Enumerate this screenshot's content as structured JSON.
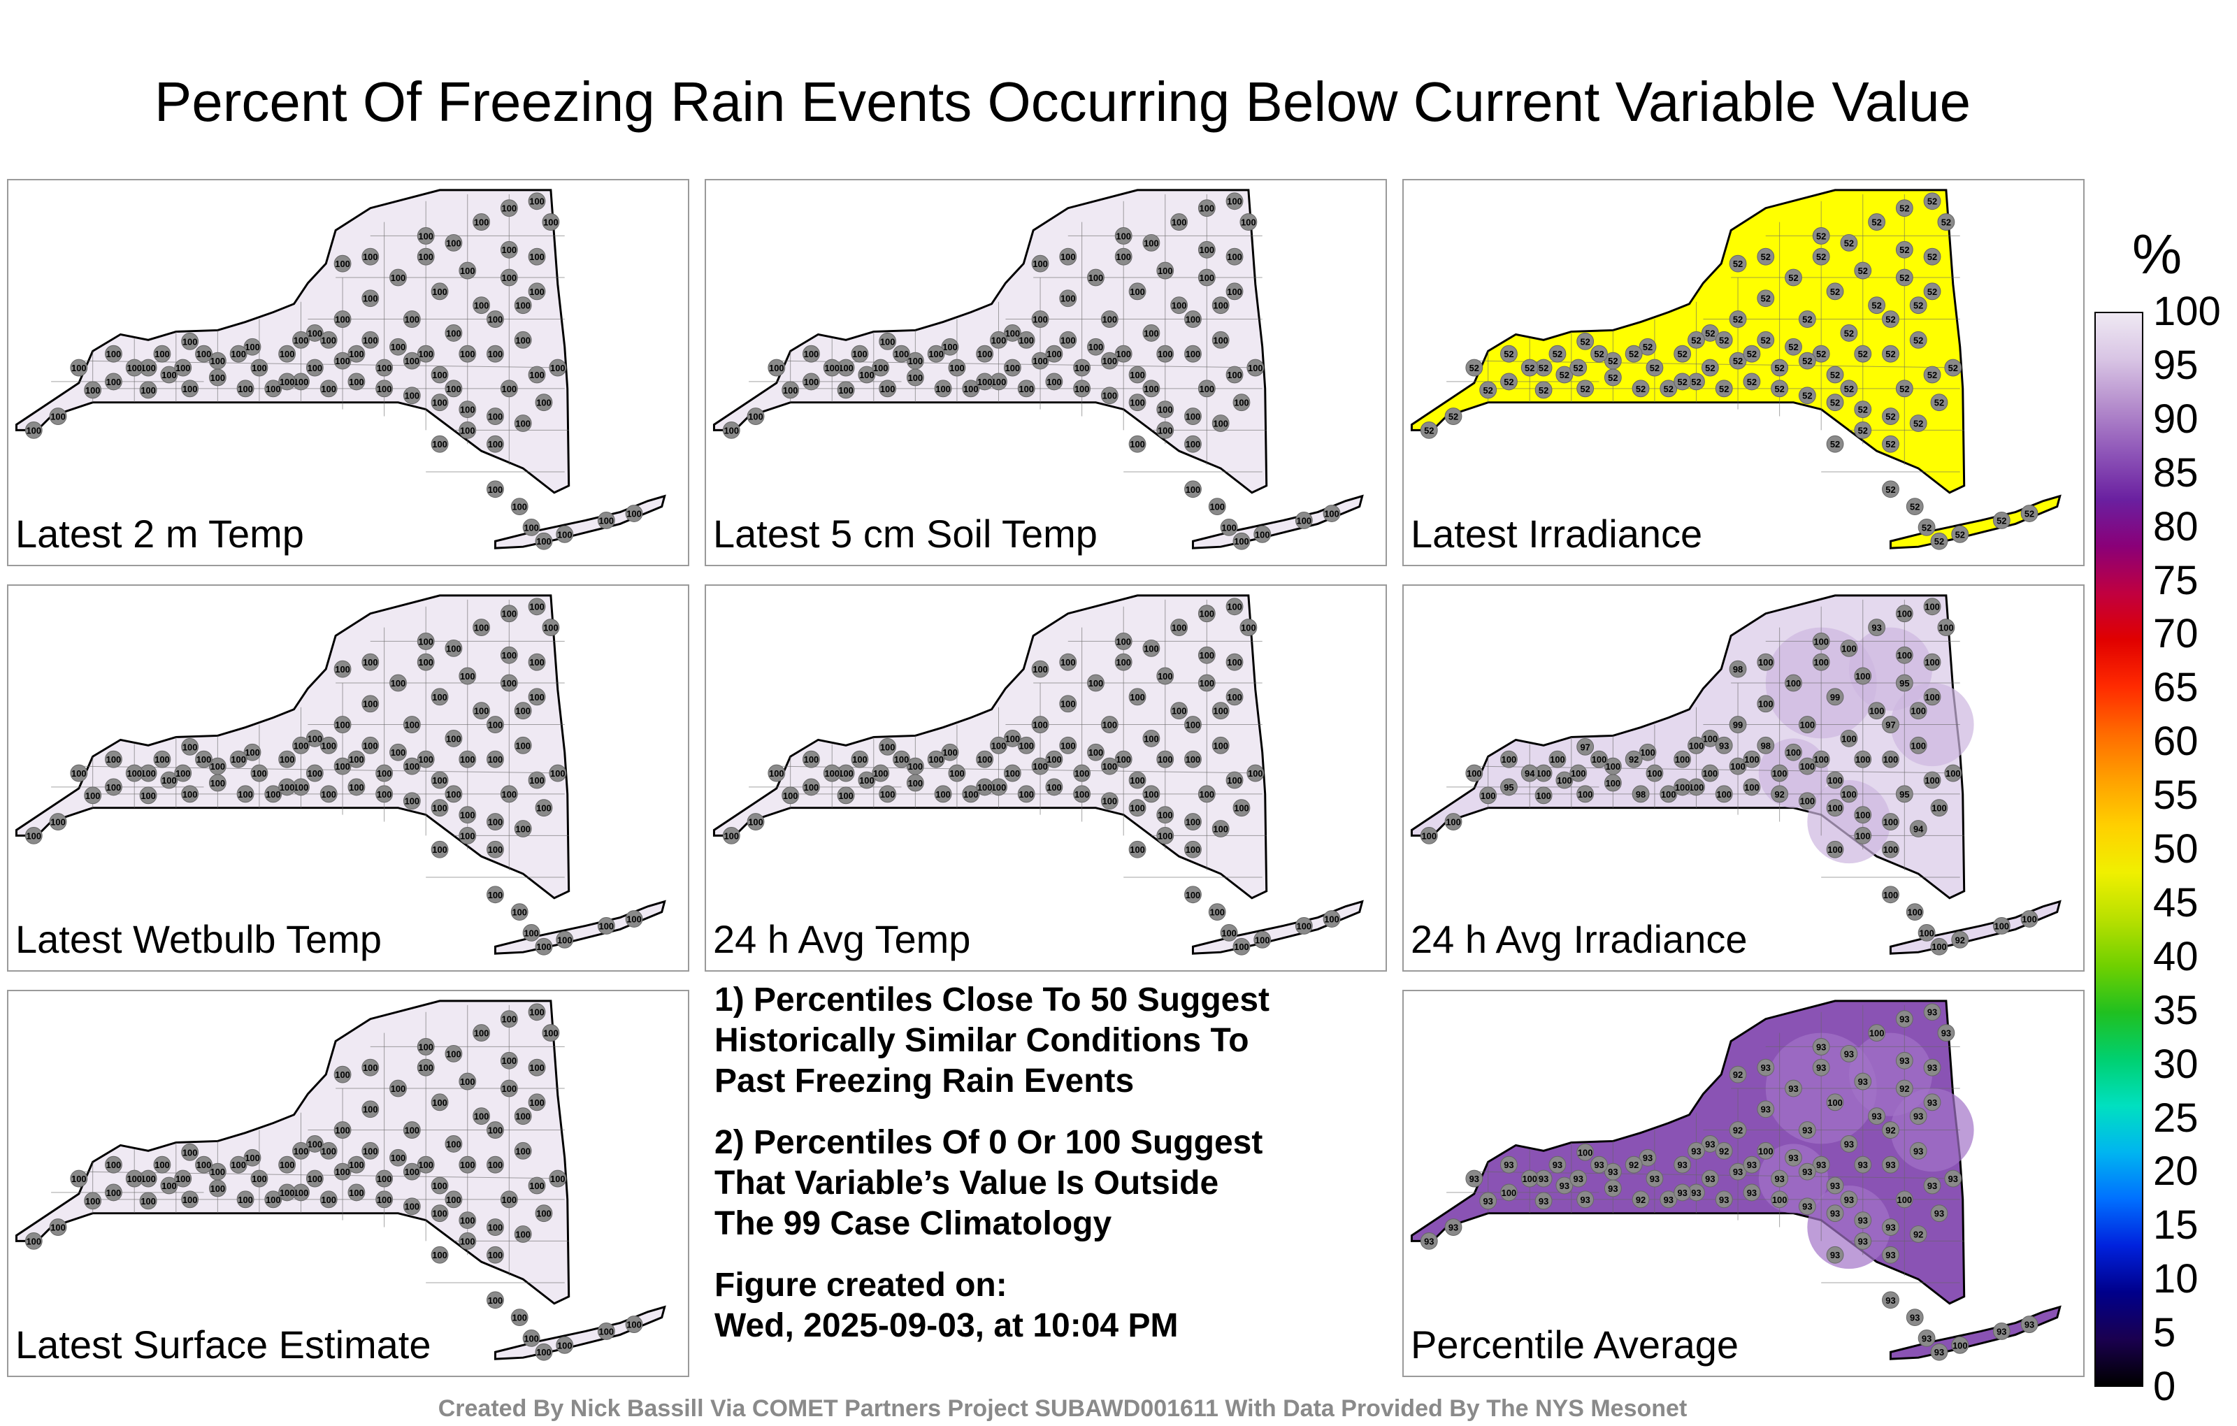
{
  "title": "Percent Of Freezing Rain Events Occurring Below Current Variable Value",
  "panels": [
    {
      "label": "Latest 2 m Temp",
      "fill": "#efe9f3",
      "value_main": 100
    },
    {
      "label": "Latest 5 cm Soil Temp",
      "fill": "#efe9f3",
      "value_main": 100
    },
    {
      "label": "Latest Irradiance",
      "fill": "#ffff00",
      "value_main": 52
    },
    {
      "label": "Latest Wetbulb Temp",
      "fill": "#efe9f3",
      "value_main": 100
    },
    {
      "label": "24 h Avg Temp",
      "fill": "#efe9f3",
      "value_main": 100
    },
    {
      "label": "24 h Avg Irradiance",
      "fill": "#e4d9ee",
      "value_main": 100,
      "value_alts": [
        99,
        98,
        97,
        95,
        94,
        93,
        92
      ]
    },
    {
      "label": "Latest Surface Estimate",
      "fill": "#efe9f3",
      "value_main": 100
    },
    {
      "label": "Percentile Average",
      "fill": "#8a53b4",
      "value_main": 93,
      "value_alts": [
        92,
        100
      ]
    }
  ],
  "notes": {
    "note1": "1) Percentiles Close To 50 Suggest\nHistorically Similar Conditions To\nPast Freezing Rain Events",
    "note2": "2) Percentiles Of 0 Or 100 Suggest\nThat Variable’s Value Is Outside\nThe 99 Case Climatology",
    "created_label": "Figure created on:",
    "created_date": "Wed, 2025-09-03, at 10:04 PM"
  },
  "colorbar": {
    "unit": "%",
    "ticks": [
      "100",
      "95",
      "90",
      "85",
      "80",
      "75",
      "70",
      "65",
      "60",
      "55",
      "50",
      "45",
      "40",
      "35",
      "30",
      "25",
      "20",
      "15",
      "10",
      "5",
      "0"
    ],
    "colors": [
      "#000000",
      "#1a0050",
      "#00008b",
      "#0022dd",
      "#0070ff",
      "#00b5f0",
      "#00e0c0",
      "#00d070",
      "#20c020",
      "#70d000",
      "#b8e000",
      "#f0f000",
      "#ffd000",
      "#ffa000",
      "#ff6a00",
      "#ff2a00",
      "#e00000",
      "#c00040",
      "#8a0078",
      "#6a20a0",
      "#8e55b8",
      "#b48ccc",
      "#d8c4e4",
      "#efe9f3"
    ]
  },
  "credits": "Created By Nick Bassill Via COMET Partners Project SUBAWD001611 With Data Provided By The NYS Mesonet"
}
